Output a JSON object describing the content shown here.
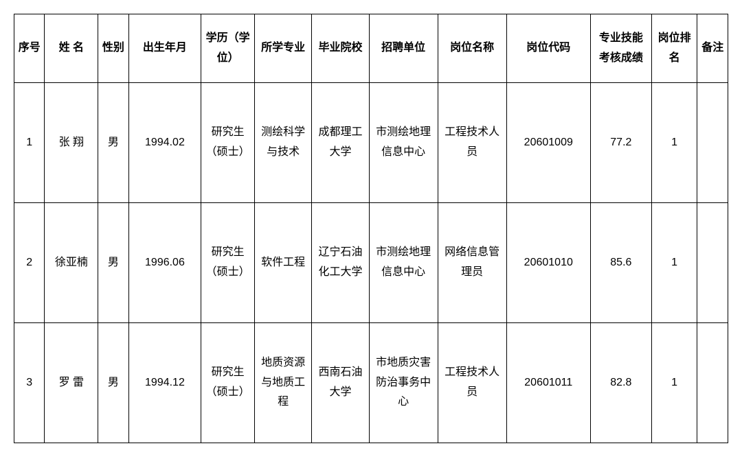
{
  "table": {
    "border_color": "#000000",
    "text_color": "#000000",
    "background_color": "#ffffff",
    "header_fontsize": 16,
    "cell_fontsize": 16,
    "columns": [
      {
        "key": "seq",
        "label": "序号",
        "class": "col-seq"
      },
      {
        "key": "name",
        "label": "姓 名",
        "class": "col-name"
      },
      {
        "key": "gender",
        "label": "性别",
        "class": "col-gender"
      },
      {
        "key": "birth",
        "label": "出生年月",
        "class": "col-birth"
      },
      {
        "key": "edu",
        "label": "学历（学位）",
        "class": "col-edu"
      },
      {
        "key": "major",
        "label": "所学专业",
        "class": "col-major"
      },
      {
        "key": "school",
        "label": "毕业院校",
        "class": "col-school"
      },
      {
        "key": "employer",
        "label": "招聘单位",
        "class": "col-employer"
      },
      {
        "key": "position",
        "label": "岗位名称",
        "class": "col-position"
      },
      {
        "key": "code",
        "label": "岗位代码",
        "class": "col-code"
      },
      {
        "key": "score",
        "label": "专业技能考核成绩",
        "class": "col-score"
      },
      {
        "key": "rank",
        "label": "岗位排名",
        "class": "col-rank"
      },
      {
        "key": "remark",
        "label": "备注",
        "class": "col-remark"
      }
    ],
    "rows": [
      {
        "seq": "1",
        "name": "张 翔",
        "gender": "男",
        "birth": "1994.02",
        "edu": "研究生（硕士）",
        "major": "测绘科学与技术",
        "school": "成都理工大学",
        "employer": "市测绘地理信息中心",
        "position": "工程技术人员",
        "code": "20601009",
        "score": "77.2",
        "rank": "1",
        "remark": ""
      },
      {
        "seq": "2",
        "name": "徐亚楠",
        "gender": "男",
        "birth": "1996.06",
        "edu": "研究生（硕士）",
        "major": "软件工程",
        "school": "辽宁石油化工大学",
        "employer": "市测绘地理信息中心",
        "position": "网络信息管理员",
        "code": "20601010",
        "score": "85.6",
        "rank": "1",
        "remark": ""
      },
      {
        "seq": "3",
        "name": "罗 雷",
        "gender": "男",
        "birth": "1994.12",
        "edu": "研究生（硕士）",
        "major": "地质资源与地质工程",
        "school": "西南石油大学",
        "employer": "市地质灾害防治事务中心",
        "position": "工程技术人员",
        "code": "20601011",
        "score": "82.8",
        "rank": "1",
        "remark": ""
      }
    ]
  }
}
